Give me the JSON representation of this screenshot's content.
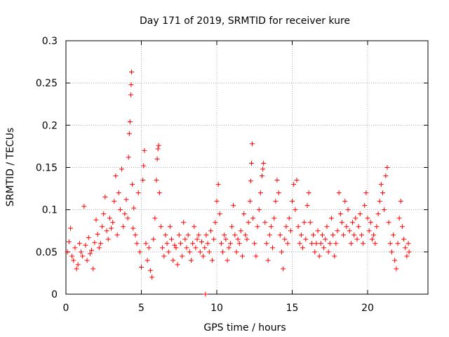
{
  "colors": {
    "marker": "#ff0000",
    "grid": "#a0a0a0",
    "axis": "#000000",
    "background": "#ffffff"
  },
  "chart_data": {
    "type": "scatter",
    "title": "Day 171 of 2019, SRMTID for receiver kure",
    "xlabel": "GPS time / hours",
    "ylabel": "SRMTID / TECUs",
    "xlim": [
      0,
      24
    ],
    "ylim": [
      0,
      0.3
    ],
    "grid": true,
    "marker": "+",
    "x_ticks": [
      0,
      5,
      10,
      15,
      20
    ],
    "x_tick_labels": [
      "0",
      "5",
      "10",
      "15",
      "20"
    ],
    "y_ticks": [
      0,
      0.05,
      0.1,
      0.15,
      0.2,
      0.25,
      0.3
    ],
    "y_tick_labels": [
      "0",
      "0.05",
      "0.1",
      "0.15",
      "0.2",
      "0.25",
      "0.3"
    ],
    "series": [
      {
        "name": "SRMTID",
        "points": [
          [
            0.1,
            0.05
          ],
          [
            0.2,
            0.062
          ],
          [
            0.3,
            0.078
          ],
          [
            0.4,
            0.045
          ],
          [
            0.5,
            0.04
          ],
          [
            0.6,
            0.055
          ],
          [
            0.7,
            0.03
          ],
          [
            0.8,
            0.035
          ],
          [
            0.9,
            0.06
          ],
          [
            1.0,
            0.05
          ],
          [
            1.1,
            0.045
          ],
          [
            1.2,
            0.104
          ],
          [
            1.3,
            0.058
          ],
          [
            1.4,
            0.04
          ],
          [
            1.5,
            0.067
          ],
          [
            1.6,
            0.048
          ],
          [
            1.7,
            0.052
          ],
          [
            1.8,
            0.03
          ],
          [
            1.9,
            0.061
          ],
          [
            2.0,
            0.088
          ],
          [
            2.1,
            0.071
          ],
          [
            2.2,
            0.055
          ],
          [
            2.3,
            0.06
          ],
          [
            2.4,
            0.08
          ],
          [
            2.5,
            0.095
          ],
          [
            2.6,
            0.115
          ],
          [
            2.7,
            0.075
          ],
          [
            2.8,
            0.065
          ],
          [
            2.9,
            0.09
          ],
          [
            3.0,
            0.078
          ],
          [
            3.1,
            0.085
          ],
          [
            3.2,
            0.11
          ],
          [
            3.3,
            0.14
          ],
          [
            3.4,
            0.07
          ],
          [
            3.5,
            0.12
          ],
          [
            3.6,
            0.1
          ],
          [
            3.7,
            0.148
          ],
          [
            3.8,
            0.08
          ],
          [
            3.9,
            0.095
          ],
          [
            4.0,
            0.112
          ],
          [
            4.1,
            0.09
          ],
          [
            4.15,
            0.162
          ],
          [
            4.2,
            0.19
          ],
          [
            4.25,
            0.204
          ],
          [
            4.3,
            0.236
          ],
          [
            4.32,
            0.248
          ],
          [
            4.35,
            0.263
          ],
          [
            4.4,
            0.13
          ],
          [
            4.45,
            0.078
          ],
          [
            4.5,
            0.102
          ],
          [
            4.6,
            0.07
          ],
          [
            4.7,
            0.06
          ],
          [
            4.8,
            0.12
          ],
          [
            4.9,
            0.05
          ],
          [
            5.0,
            0.032
          ],
          [
            5.1,
            0.135
          ],
          [
            5.15,
            0.152
          ],
          [
            5.2,
            0.17
          ],
          [
            5.3,
            0.06
          ],
          [
            5.4,
            0.04
          ],
          [
            5.5,
            0.055
          ],
          [
            5.6,
            0.028
          ],
          [
            5.7,
            0.02
          ],
          [
            5.8,
            0.065
          ],
          [
            5.9,
            0.09
          ],
          [
            6.0,
            0.135
          ],
          [
            6.05,
            0.16
          ],
          [
            6.1,
            0.172
          ],
          [
            6.15,
            0.176
          ],
          [
            6.2,
            0.12
          ],
          [
            6.3,
            0.08
          ],
          [
            6.4,
            0.055
          ],
          [
            6.5,
            0.045
          ],
          [
            6.6,
            0.07
          ],
          [
            6.7,
            0.06
          ],
          [
            6.8,
            0.05
          ],
          [
            6.9,
            0.08
          ],
          [
            7.0,
            0.065
          ],
          [
            7.1,
            0.04
          ],
          [
            7.2,
            0.058
          ],
          [
            7.3,
            0.055
          ],
          [
            7.4,
            0.035
          ],
          [
            7.5,
            0.07
          ],
          [
            7.6,
            0.06
          ],
          [
            7.7,
            0.045
          ],
          [
            7.8,
            0.085
          ],
          [
            7.9,
            0.065
          ],
          [
            8.0,
            0.055
          ],
          [
            8.1,
            0.07
          ],
          [
            8.2,
            0.05
          ],
          [
            8.3,
            0.04
          ],
          [
            8.4,
            0.06
          ],
          [
            8.5,
            0.08
          ],
          [
            8.6,
            0.055
          ],
          [
            8.7,
            0.065
          ],
          [
            8.8,
            0.07
          ],
          [
            8.9,
            0.05
          ],
          [
            9.0,
            0.062
          ],
          [
            9.1,
            0.045
          ],
          [
            9.2,
            0.055
          ],
          [
            9.25,
            0.0
          ],
          [
            9.3,
            0.07
          ],
          [
            9.4,
            0.06
          ],
          [
            9.5,
            0.05
          ],
          [
            9.6,
            0.075
          ],
          [
            9.7,
            0.04
          ],
          [
            9.8,
            0.065
          ],
          [
            9.9,
            0.085
          ],
          [
            10.0,
            0.11
          ],
          [
            10.1,
            0.13
          ],
          [
            10.2,
            0.095
          ],
          [
            10.3,
            0.06
          ],
          [
            10.4,
            0.05
          ],
          [
            10.5,
            0.07
          ],
          [
            10.6,
            0.065
          ],
          [
            10.7,
            0.04
          ],
          [
            10.8,
            0.055
          ],
          [
            10.9,
            0.06
          ],
          [
            11.0,
            0.08
          ],
          [
            11.1,
            0.105
          ],
          [
            11.2,
            0.07
          ],
          [
            11.3,
            0.05
          ],
          [
            11.4,
            0.065
          ],
          [
            11.5,
            0.06
          ],
          [
            11.6,
            0.075
          ],
          [
            11.7,
            0.045
          ],
          [
            11.8,
            0.095
          ],
          [
            11.9,
            0.07
          ],
          [
            12.0,
            0.065
          ],
          [
            12.1,
            0.085
          ],
          [
            12.2,
            0.11
          ],
          [
            12.25,
            0.134
          ],
          [
            12.3,
            0.155
          ],
          [
            12.35,
            0.178
          ],
          [
            12.4,
            0.09
          ],
          [
            12.5,
            0.06
          ],
          [
            12.6,
            0.045
          ],
          [
            12.7,
            0.08
          ],
          [
            12.8,
            0.1
          ],
          [
            12.9,
            0.12
          ],
          [
            13.0,
            0.14
          ],
          [
            13.05,
            0.148
          ],
          [
            13.1,
            0.155
          ],
          [
            13.2,
            0.085
          ],
          [
            13.3,
            0.06
          ],
          [
            13.4,
            0.04
          ],
          [
            13.5,
            0.07
          ],
          [
            13.6,
            0.08
          ],
          [
            13.7,
            0.055
          ],
          [
            13.8,
            0.09
          ],
          [
            13.9,
            0.11
          ],
          [
            14.0,
            0.135
          ],
          [
            14.1,
            0.12
          ],
          [
            14.2,
            0.07
          ],
          [
            14.3,
            0.05
          ],
          [
            14.4,
            0.03
          ],
          [
            14.5,
            0.065
          ],
          [
            14.6,
            0.08
          ],
          [
            14.7,
            0.06
          ],
          [
            14.8,
            0.09
          ],
          [
            14.9,
            0.075
          ],
          [
            15.0,
            0.11
          ],
          [
            15.1,
            0.13
          ],
          [
            15.2,
            0.1
          ],
          [
            15.3,
            0.135
          ],
          [
            15.4,
            0.08
          ],
          [
            15.5,
            0.06
          ],
          [
            15.6,
            0.07
          ],
          [
            15.7,
            0.055
          ],
          [
            15.8,
            0.085
          ],
          [
            15.9,
            0.065
          ],
          [
            16.0,
            0.105
          ],
          [
            16.1,
            0.12
          ],
          [
            16.2,
            0.085
          ],
          [
            16.3,
            0.06
          ],
          [
            16.4,
            0.07
          ],
          [
            16.5,
            0.05
          ],
          [
            16.6,
            0.06
          ],
          [
            16.7,
            0.075
          ],
          [
            16.8,
            0.045
          ],
          [
            16.9,
            0.06
          ],
          [
            17.0,
            0.07
          ],
          [
            17.1,
            0.055
          ],
          [
            17.2,
            0.065
          ],
          [
            17.3,
            0.08
          ],
          [
            17.4,
            0.05
          ],
          [
            17.5,
            0.06
          ],
          [
            17.6,
            0.09
          ],
          [
            17.7,
            0.07
          ],
          [
            17.8,
            0.045
          ],
          [
            17.9,
            0.06
          ],
          [
            18.0,
            0.075
          ],
          [
            18.1,
            0.12
          ],
          [
            18.2,
            0.095
          ],
          [
            18.3,
            0.085
          ],
          [
            18.4,
            0.07
          ],
          [
            18.5,
            0.11
          ],
          [
            18.6,
            0.08
          ],
          [
            18.7,
            0.1
          ],
          [
            18.8,
            0.075
          ],
          [
            18.9,
            0.06
          ],
          [
            19.0,
            0.085
          ],
          [
            19.1,
            0.07
          ],
          [
            19.2,
            0.09
          ],
          [
            19.3,
            0.065
          ],
          [
            19.4,
            0.08
          ],
          [
            19.5,
            0.095
          ],
          [
            19.6,
            0.07
          ],
          [
            19.7,
            0.06
          ],
          [
            19.8,
            0.105
          ],
          [
            19.9,
            0.12
          ],
          [
            20.0,
            0.09
          ],
          [
            20.1,
            0.075
          ],
          [
            20.2,
            0.085
          ],
          [
            20.3,
            0.065
          ],
          [
            20.4,
            0.07
          ],
          [
            20.5,
            0.06
          ],
          [
            20.6,
            0.08
          ],
          [
            20.7,
            0.095
          ],
          [
            20.8,
            0.11
          ],
          [
            20.9,
            0.13
          ],
          [
            21.0,
            0.12
          ],
          [
            21.1,
            0.1
          ],
          [
            21.2,
            0.14
          ],
          [
            21.3,
            0.15
          ],
          [
            21.4,
            0.085
          ],
          [
            21.5,
            0.06
          ],
          [
            21.6,
            0.05
          ],
          [
            21.7,
            0.07
          ],
          [
            21.8,
            0.04
          ],
          [
            21.9,
            0.03
          ],
          [
            22.0,
            0.06
          ],
          [
            22.1,
            0.09
          ],
          [
            22.2,
            0.11
          ],
          [
            22.3,
            0.08
          ],
          [
            22.4,
            0.065
          ],
          [
            22.5,
            0.055
          ],
          [
            22.6,
            0.045
          ],
          [
            22.7,
            0.06
          ],
          [
            22.75,
            0.05
          ]
        ]
      }
    ]
  }
}
